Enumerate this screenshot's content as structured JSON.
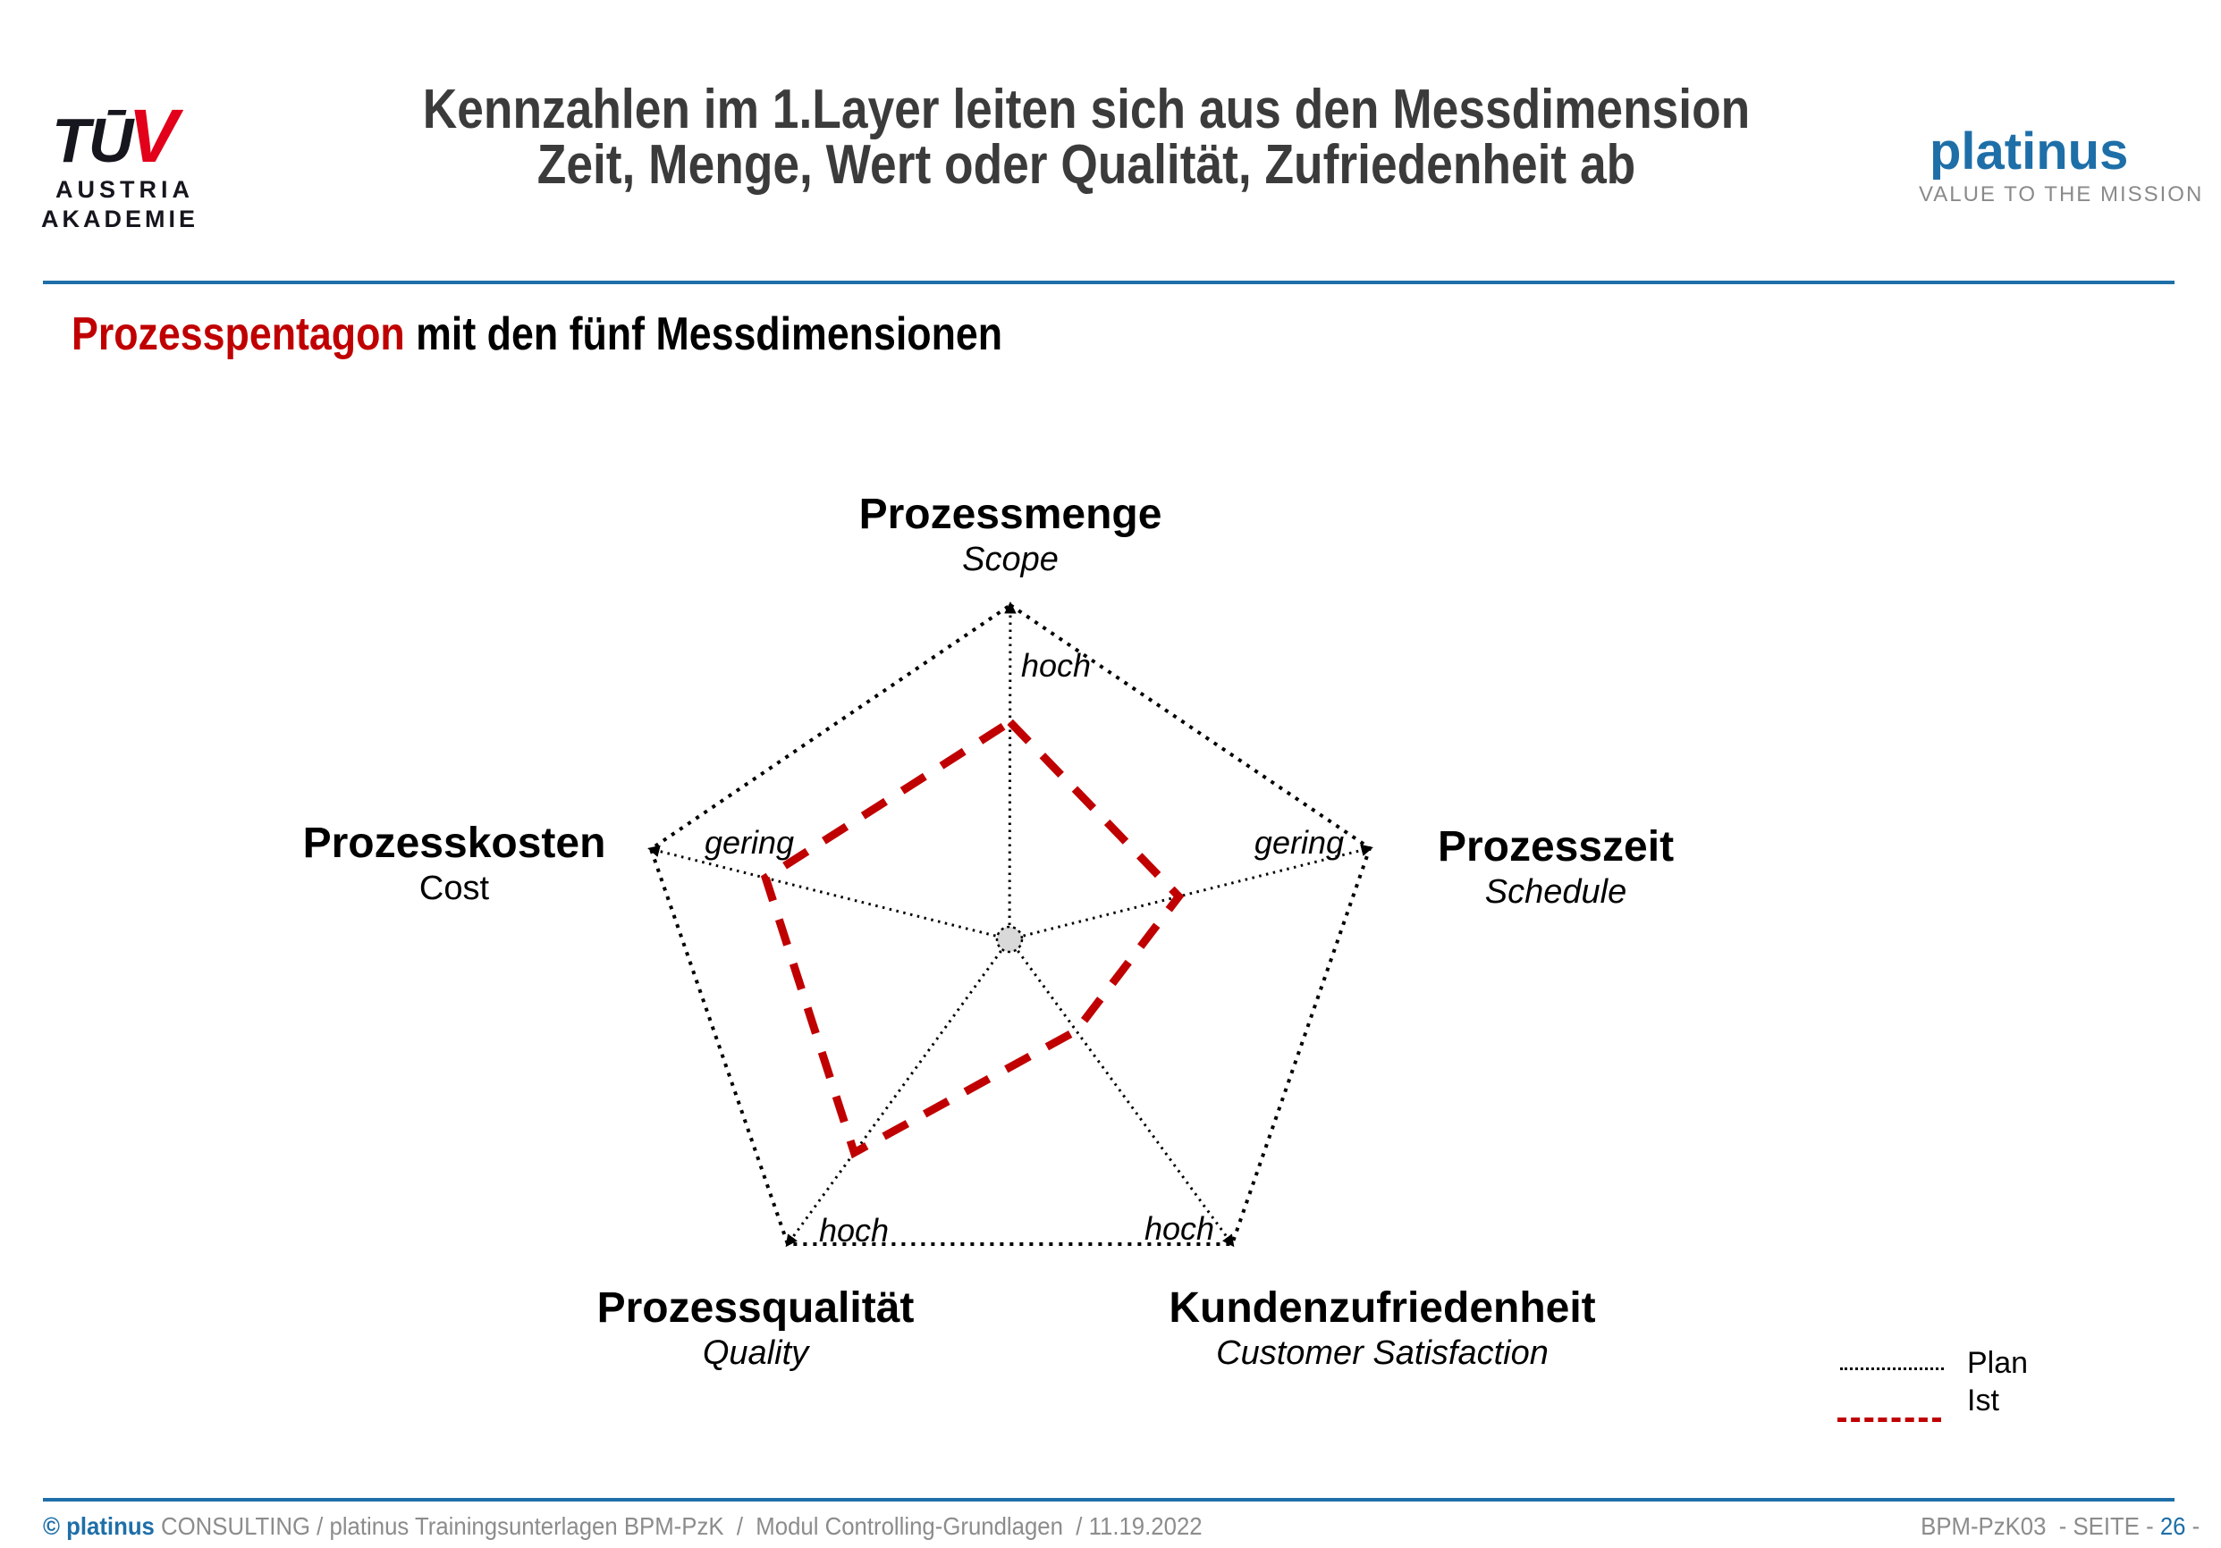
{
  "header": {
    "logo": {
      "mark_black": "TŪ",
      "mark_red": "V",
      "line2": "AUSTRIA",
      "line3": "AKADEMIE"
    },
    "title_line1": "Kennzahlen im 1.Layer leiten sich aus den Messdimension",
    "title_line2": "Zeit, Menge, Wert oder Qualität, Zufriedenheit ab",
    "brand": {
      "name": "platinus",
      "tagline": "VALUE TO THE MISSION"
    }
  },
  "subtitle": {
    "highlight": "Prozesspentagon",
    "rest": " mit den fünf Messdimensionen"
  },
  "chart_data": {
    "type": "radar",
    "title": "Prozesspentagon mit den fünf Messdimensionen",
    "axes": [
      {
        "label": "Prozessmenge",
        "sublabel": "Scope",
        "value_label": "hoch"
      },
      {
        "label": "Prozesszeit",
        "sublabel": "Schedule",
        "value_label": "gering"
      },
      {
        "label": "Kundenzufriedenheit",
        "sublabel": "Customer Satisfaction",
        "value_label": "hoch"
      },
      {
        "label": "Prozessqualität",
        "sublabel": "Quality",
        "value_label": "hoch"
      },
      {
        "label": "Prozesskosten",
        "sublabel": "Cost",
        "value_label": "gering"
      }
    ],
    "series": [
      {
        "name": "Plan",
        "style": "dotted",
        "color": "#000000",
        "values": [
          1,
          1,
          1,
          1,
          1
        ]
      },
      {
        "name": "Ist",
        "style": "dashed",
        "color": "#c00000",
        "values": [
          0.65,
          0.47,
          0.3,
          0.7,
          0.68
        ]
      }
    ],
    "value_scale": "0 = Zentrum, 1 = Außeneck (Plan)",
    "legend": {
      "position": "bottom-right",
      "items": [
        "Plan",
        "Ist"
      ]
    }
  },
  "footer": {
    "left_brand": "© platinus",
    "left_rest": " CONSULTING / platinus Trainingsunterlagen BPM-PzK  /  Modul Controlling-Grundlagen  / 11.19.2022",
    "right_prefix": "BPM-PzK03  - SEITE - ",
    "page": "26",
    "right_suffix": " -"
  },
  "colors": {
    "accent_blue": "#1e6fa8",
    "brand_red": "#c00000",
    "tuv_red": "#e2001a",
    "ist_red": "#c00000"
  }
}
